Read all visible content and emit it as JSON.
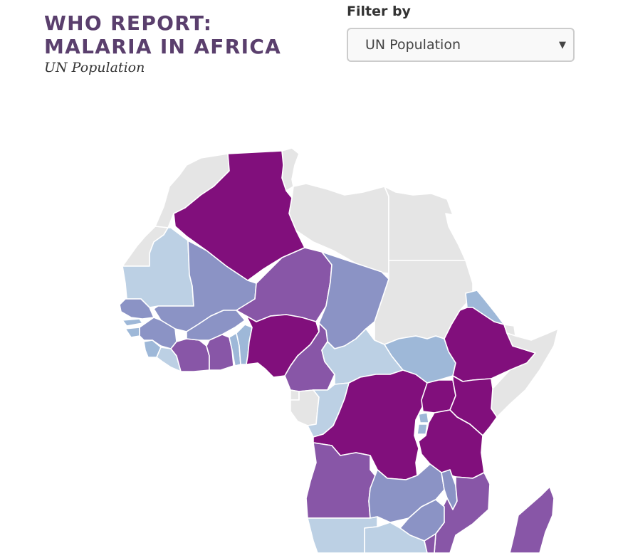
{
  "header": {
    "title_line1": "WHO REPORT:",
    "title_line2": "MALARIA IN AFRICA",
    "subtitle": "UN Population"
  },
  "filter": {
    "label": "Filter by",
    "selected": "UN Population"
  },
  "legend_colors": {
    "no_data": "#e5e5e5",
    "level_1": "#bcd0e4",
    "level_2": "#9eb8d8",
    "level_3": "#8b93c5",
    "level_4": "#8856a7",
    "level_5": "#810f7c"
  },
  "map": {
    "countries": [
      {
        "name": "morocco",
        "level": "no_data"
      },
      {
        "name": "western-sahara",
        "level": "no_data"
      },
      {
        "name": "algeria",
        "level": "level_5"
      },
      {
        "name": "tunisia",
        "level": "no_data"
      },
      {
        "name": "libya",
        "level": "no_data"
      },
      {
        "name": "egypt",
        "level": "no_data"
      },
      {
        "name": "sudan",
        "level": "no_data"
      },
      {
        "name": "mauritania",
        "level": "level_1"
      },
      {
        "name": "mali",
        "level": "level_3"
      },
      {
        "name": "niger",
        "level": "level_4"
      },
      {
        "name": "chad",
        "level": "level_3"
      },
      {
        "name": "eritrea",
        "level": "level_2"
      },
      {
        "name": "senegal",
        "level": "level_3"
      },
      {
        "name": "gambia",
        "level": "level_2"
      },
      {
        "name": "guinea-bissau",
        "level": "level_2"
      },
      {
        "name": "guinea",
        "level": "level_3"
      },
      {
        "name": "sierra-leone",
        "level": "level_2"
      },
      {
        "name": "liberia",
        "level": "level_1"
      },
      {
        "name": "cote-divoire",
        "level": "level_4"
      },
      {
        "name": "burkina-faso",
        "level": "level_3"
      },
      {
        "name": "ghana",
        "level": "level_4"
      },
      {
        "name": "togo",
        "level": "level_2"
      },
      {
        "name": "benin",
        "level": "level_2"
      },
      {
        "name": "nigeria",
        "level": "level_5"
      },
      {
        "name": "cameroon",
        "level": "level_4"
      },
      {
        "name": "central-african-republic",
        "level": "level_1"
      },
      {
        "name": "south-sudan",
        "level": "level_2"
      },
      {
        "name": "ethiopia",
        "level": "level_5"
      },
      {
        "name": "djibouti",
        "level": "no_data"
      },
      {
        "name": "somalia",
        "level": "no_data"
      },
      {
        "name": "kenya",
        "level": "level_5"
      },
      {
        "name": "uganda",
        "level": "level_5"
      },
      {
        "name": "rwanda",
        "level": "level_2"
      },
      {
        "name": "burundi",
        "level": "level_2"
      },
      {
        "name": "gabon",
        "level": "no_data"
      },
      {
        "name": "equatorial-guinea",
        "level": "no_data"
      },
      {
        "name": "congo",
        "level": "level_1"
      },
      {
        "name": "dr-congo",
        "level": "level_5"
      },
      {
        "name": "tanzania",
        "level": "level_5"
      },
      {
        "name": "angola",
        "level": "level_4"
      },
      {
        "name": "zambia",
        "level": "level_3"
      },
      {
        "name": "malawi",
        "level": "level_3"
      },
      {
        "name": "mozambique",
        "level": "level_4"
      },
      {
        "name": "zimbabwe",
        "level": "level_3"
      },
      {
        "name": "namibia",
        "level": "level_1"
      },
      {
        "name": "botswana",
        "level": "level_1"
      },
      {
        "name": "south-africa",
        "level": "level_4"
      },
      {
        "name": "madagascar",
        "level": "level_4"
      }
    ]
  }
}
